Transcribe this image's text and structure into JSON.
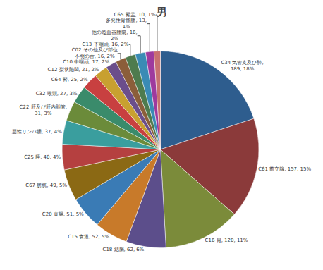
{
  "chart_data": {
    "type": "pie",
    "title": "男",
    "categories": [
      "C34 気管支及び肺,\n189, 18%",
      "C61 前立腺, 157, 15%",
      "C16 胃, 120, 11%",
      "C18 結腸, 62, 6%",
      "C15 食道, 52, 5%",
      "C20 直腸, 51, 5%",
      "C67 膀胱, 49, 5%",
      "C25 膵, 40, 4%",
      "悪性リンパ腫, 37, 4%",
      "C22 肝及び肝内胆管,\n31, 3%",
      "C32 喉頭, 27, 3%",
      "C64 腎, 25, 2%",
      "C12 梨状陥凹, 21, 2%",
      "C10 中咽頭, 17, 2%",
      "C02 その他及び部位\n不明の舌, 16, 2%",
      "C13 下咽頭, 16, 2%",
      "他の造血器腫瘍, 16,\n2%",
      "多発性骨髄腫, 13,\n1%",
      "C65 腎盂, 10, 1%"
    ],
    "values": [
      189,
      157,
      120,
      62,
      52,
      51,
      49,
      40,
      37,
      31,
      27,
      25,
      21,
      17,
      16,
      16,
      16,
      13,
      10
    ],
    "colors": [
      "#2E5D8E",
      "#8B3A3A",
      "#7B8B3A",
      "#5C4E8B",
      "#C87A2A",
      "#3A7BB5",
      "#8B6914",
      "#B54040",
      "#3A9E9E",
      "#6B8B3A",
      "#3A8B6B",
      "#C84040",
      "#C8A030",
      "#6B4E8B",
      "#8B5E3A",
      "#4E7B4E",
      "#3A8BB5",
      "#9E3A9E",
      "#C87070"
    ]
  }
}
